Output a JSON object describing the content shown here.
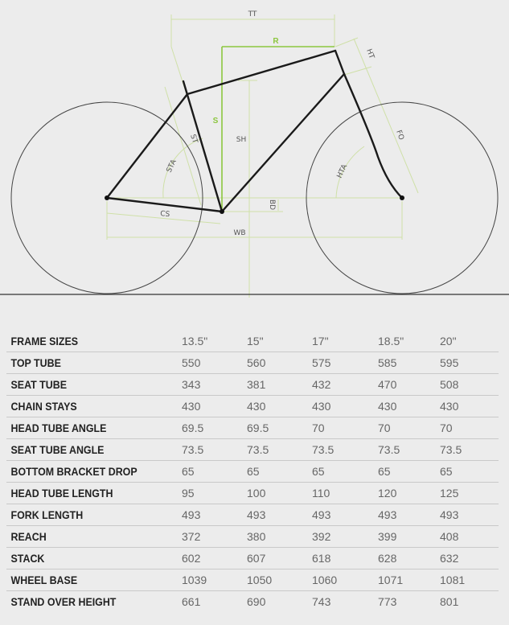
{
  "diagram": {
    "labels": {
      "tt": "TT",
      "r": "R",
      "ht": "HT",
      "s": "S",
      "st": "ST",
      "sh": "SH",
      "sta": "STA",
      "fo": "FO",
      "hta": "HTA",
      "cs": "CS",
      "bd": "BD",
      "wb": "WB"
    },
    "colors": {
      "frame": "#1a1a1a",
      "dimension": "#cfe0a8",
      "highlight": "#8cc63f",
      "wheel": "#444444"
    }
  },
  "table": {
    "header": {
      "label": "FRAME SIZES",
      "sizes": [
        "13.5\"",
        "15\"",
        "17\"",
        "18.5\"",
        "20\""
      ]
    },
    "rows": [
      {
        "label": "TOP TUBE",
        "values": [
          "550",
          "560",
          "575",
          "585",
          "595"
        ]
      },
      {
        "label": "SEAT TUBE",
        "values": [
          "343",
          "381",
          "432",
          "470",
          "508"
        ]
      },
      {
        "label": "CHAIN STAYS",
        "values": [
          "430",
          "430",
          "430",
          "430",
          "430"
        ]
      },
      {
        "label": "HEAD TUBE ANGLE",
        "values": [
          "69.5",
          "69.5",
          "70",
          "70",
          "70"
        ]
      },
      {
        "label": "SEAT TUBE ANGLE",
        "values": [
          "73.5",
          "73.5",
          "73.5",
          "73.5",
          "73.5"
        ]
      },
      {
        "label": "BOTTOM BRACKET DROP",
        "values": [
          "65",
          "65",
          "65",
          "65",
          "65"
        ]
      },
      {
        "label": "HEAD TUBE LENGTH",
        "values": [
          "95",
          "100",
          "110",
          "120",
          "125"
        ]
      },
      {
        "label": "FORK LENGTH",
        "values": [
          "493",
          "493",
          "493",
          "493",
          "493"
        ]
      },
      {
        "label": "REACH",
        "values": [
          "372",
          "380",
          "392",
          "399",
          "408"
        ]
      },
      {
        "label": "STACK",
        "values": [
          "602",
          "607",
          "618",
          "628",
          "632"
        ]
      },
      {
        "label": "WHEEL BASE",
        "values": [
          "1039",
          "1050",
          "1060",
          "1071",
          "1081"
        ]
      },
      {
        "label": "STAND OVER HEIGHT",
        "values": [
          "661",
          "690",
          "743",
          "773",
          "801"
        ]
      }
    ]
  }
}
